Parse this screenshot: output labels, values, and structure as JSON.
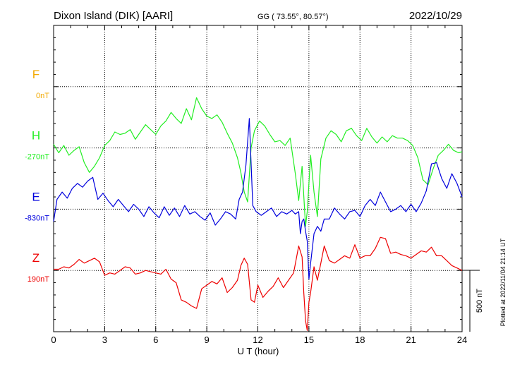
{
  "header": {
    "station": "Dixon Island (DIK)  [AARI]",
    "coords": "GG ( 73.55°,  80.57°)",
    "date": "2022/10/29"
  },
  "footer": {
    "plotted": "Plotted at 2022/11/04 21:14 UT"
  },
  "scale_bar": {
    "label": "500 nT",
    "value_nT": 500
  },
  "chart_data": {
    "type": "line",
    "xlabel": "U T (hour)",
    "xlim": [
      0,
      24
    ],
    "xticks": [
      0,
      3,
      6,
      9,
      12,
      15,
      18,
      21,
      24
    ],
    "xtick_labels": [
      "0",
      "3",
      "6",
      "9",
      "12",
      "15",
      "18",
      "21",
      "24"
    ],
    "nT_per_grid_row": 500,
    "grid": true,
    "series": [
      {
        "name": "F",
        "label": "F",
        "baseline_label": "0nT",
        "row": 1,
        "color": "#f2a900",
        "x": [],
        "values": []
      },
      {
        "name": "H",
        "label": "H",
        "baseline_label": "-270nT",
        "row": 2,
        "color": "#22ee22",
        "x": [
          0,
          0.3,
          0.6,
          0.9,
          1.2,
          1.5,
          1.8,
          2.1,
          2.4,
          2.7,
          3.0,
          3.3,
          3.6,
          3.9,
          4.2,
          4.5,
          4.8,
          5.1,
          5.4,
          5.7,
          6.0,
          6.3,
          6.6,
          6.9,
          7.2,
          7.5,
          7.8,
          8.1,
          8.4,
          8.7,
          9.0,
          9.3,
          9.6,
          9.9,
          10.2,
          10.5,
          10.8,
          11.0,
          11.2,
          11.4,
          11.6,
          11.8,
          12.1,
          12.4,
          12.7,
          13.0,
          13.3,
          13.6,
          13.9,
          14.2,
          14.4,
          14.6,
          14.8,
          14.9,
          15.1,
          15.3,
          15.5,
          15.7,
          16.0,
          16.3,
          16.6,
          16.9,
          17.2,
          17.5,
          17.8,
          18.1,
          18.4,
          18.7,
          19.0,
          19.3,
          19.6,
          19.9,
          20.2,
          20.5,
          20.8,
          21.1,
          21.4,
          21.7,
          22.0,
          22.3,
          22.6,
          22.9,
          23.2,
          23.5,
          23.8,
          24.0
        ],
        "values": [
          30,
          -40,
          20,
          -60,
          -20,
          10,
          -120,
          -200,
          -150,
          -80,
          20,
          60,
          130,
          110,
          120,
          150,
          70,
          130,
          190,
          150,
          110,
          180,
          220,
          290,
          240,
          200,
          320,
          230,
          410,
          320,
          260,
          240,
          270,
          210,
          120,
          40,
          -80,
          -200,
          -360,
          -440,
          0,
          140,
          220,
          180,
          110,
          50,
          60,
          20,
          80,
          -210,
          -430,
          -150,
          -640,
          -520,
          -60,
          -360,
          -560,
          -90,
          80,
          140,
          110,
          50,
          140,
          160,
          100,
          60,
          160,
          90,
          40,
          90,
          50,
          100,
          80,
          80,
          60,
          20,
          -80,
          -260,
          -300,
          -170,
          -60,
          -20,
          30,
          -20,
          -40,
          -30
        ]
      },
      {
        "name": "E",
        "label": "E",
        "baseline_label": "-830nT",
        "row": 3,
        "color": "#0000dd",
        "x": [
          0,
          0.2,
          0.5,
          0.8,
          1.1,
          1.4,
          1.7,
          2.0,
          2.3,
          2.6,
          2.9,
          3.2,
          3.5,
          3.8,
          4.1,
          4.4,
          4.7,
          5.0,
          5.3,
          5.6,
          5.9,
          6.2,
          6.5,
          6.8,
          7.1,
          7.4,
          7.7,
          8.0,
          8.3,
          8.6,
          8.9,
          9.2,
          9.5,
          9.8,
          10.1,
          10.4,
          10.7,
          10.9,
          11.1,
          11.3,
          11.5,
          11.7,
          11.9,
          12.2,
          12.5,
          12.8,
          13.1,
          13.4,
          13.7,
          14.0,
          14.2,
          14.4,
          14.5,
          14.6,
          14.7,
          14.8,
          14.9,
          15.0,
          15.1,
          15.3,
          15.5,
          15.7,
          15.9,
          16.2,
          16.5,
          16.8,
          17.1,
          17.4,
          17.7,
          18.0,
          18.3,
          18.6,
          18.9,
          19.2,
          19.5,
          19.8,
          20.1,
          20.4,
          20.7,
          21.0,
          21.3,
          21.6,
          21.9,
          22.2,
          22.5,
          22.8,
          23.1,
          23.4,
          23.7,
          24.0
        ],
        "values": [
          -100,
          80,
          140,
          90,
          170,
          210,
          180,
          230,
          260,
          80,
          130,
          70,
          20,
          80,
          30,
          -20,
          40,
          0,
          -60,
          20,
          -30,
          -70,
          20,
          -50,
          10,
          -60,
          30,
          -40,
          -20,
          -60,
          -90,
          -30,
          -130,
          -80,
          -20,
          -40,
          -80,
          80,
          140,
          360,
          740,
          30,
          -20,
          -50,
          -20,
          10,
          -60,
          -20,
          -40,
          -10,
          -40,
          -20,
          -200,
          -100,
          -80,
          -180,
          -260,
          -570,
          -440,
          -200,
          -140,
          -180,
          -80,
          -80,
          10,
          -40,
          -80,
          -20,
          -10,
          -60,
          30,
          80,
          30,
          140,
          60,
          -20,
          0,
          30,
          -20,
          40,
          -20,
          50,
          150,
          370,
          380,
          250,
          170,
          290,
          210,
          100
        ]
      },
      {
        "name": "Z",
        "label": "Z",
        "baseline_label": "190nT",
        "row": 4,
        "color": "#ee0000",
        "x": [
          0,
          0.3,
          0.6,
          0.9,
          1.2,
          1.5,
          1.8,
          2.1,
          2.4,
          2.7,
          3.0,
          3.3,
          3.6,
          3.9,
          4.2,
          4.5,
          4.8,
          5.1,
          5.4,
          5.7,
          6.0,
          6.3,
          6.6,
          6.9,
          7.2,
          7.5,
          7.8,
          8.1,
          8.4,
          8.7,
          9.0,
          9.3,
          9.6,
          9.9,
          10.2,
          10.5,
          10.8,
          11.0,
          11.2,
          11.4,
          11.6,
          11.8,
          12.0,
          12.3,
          12.6,
          12.9,
          13.2,
          13.5,
          13.8,
          14.1,
          14.4,
          14.6,
          14.7,
          14.8,
          14.9,
          15.0,
          15.1,
          15.3,
          15.5,
          15.7,
          15.9,
          16.2,
          16.5,
          16.8,
          17.1,
          17.4,
          17.7,
          18.0,
          18.3,
          18.6,
          18.9,
          19.2,
          19.5,
          19.8,
          20.1,
          20.4,
          20.7,
          21.0,
          21.3,
          21.6,
          21.9,
          22.2,
          22.5,
          22.8,
          23.1,
          23.4,
          23.7,
          24.0
        ],
        "values": [
          10,
          10,
          30,
          20,
          50,
          90,
          60,
          80,
          100,
          70,
          -40,
          -20,
          -30,
          0,
          30,
          20,
          -30,
          -20,
          0,
          -10,
          -20,
          -30,
          10,
          -70,
          -100,
          -240,
          -260,
          -290,
          -310,
          -150,
          -120,
          -90,
          -110,
          -60,
          -180,
          -140,
          -80,
          40,
          100,
          50,
          -240,
          -260,
          -120,
          -220,
          -170,
          -130,
          -60,
          -140,
          -80,
          -20,
          200,
          110,
          -180,
          -410,
          -490,
          -260,
          -180,
          30,
          -80,
          60,
          200,
          80,
          60,
          90,
          120,
          100,
          210,
          100,
          120,
          120,
          180,
          270,
          260,
          140,
          150,
          130,
          120,
          100,
          130,
          160,
          150,
          190,
          120,
          120,
          80,
          40,
          20,
          0
        ]
      }
    ]
  }
}
